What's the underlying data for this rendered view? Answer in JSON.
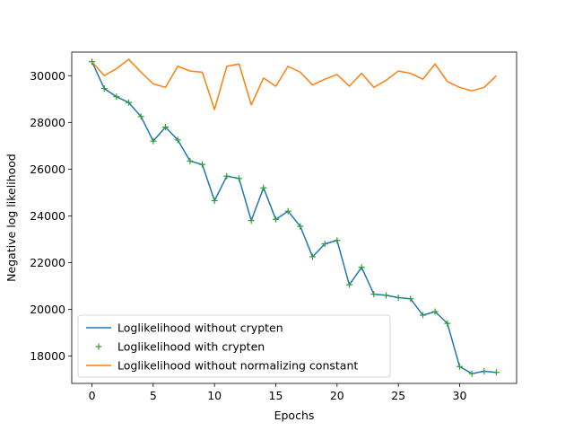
{
  "chart_data": {
    "type": "line",
    "title": "",
    "xlabel": "Epochs",
    "ylabel": "Negative log likelihood",
    "xlim": [
      -1.65,
      34.65
    ],
    "ylim": [
      16830,
      31010
    ],
    "xticks": [
      0,
      5,
      10,
      15,
      20,
      25,
      30
    ],
    "yticks": [
      18000,
      20000,
      22000,
      24000,
      26000,
      28000,
      30000
    ],
    "grid": false,
    "legend_position": "lower-left",
    "x": [
      0,
      1,
      2,
      3,
      4,
      5,
      6,
      7,
      8,
      9,
      10,
      11,
      12,
      13,
      14,
      15,
      16,
      17,
      18,
      19,
      20,
      21,
      22,
      23,
      24,
      25,
      26,
      27,
      28,
      29,
      30,
      31,
      32,
      33
    ],
    "series": [
      {
        "name": "Loglikelihood without crypten",
        "style": "line",
        "color": "#1f77b4",
        "values": [
          30600,
          29450,
          29100,
          28850,
          28250,
          27200,
          27800,
          27250,
          26350,
          26200,
          24650,
          25700,
          25600,
          23800,
          25200,
          23850,
          24200,
          23550,
          22250,
          22800,
          22950,
          21050,
          21800,
          20650,
          20600,
          20500,
          20450,
          19750,
          19900,
          19400,
          17550,
          17250,
          17350,
          17300
        ]
      },
      {
        "name": "Loglikelihood with crypten",
        "style": "marker-plus",
        "color": "#2ca02c",
        "values": [
          30600,
          29450,
          29100,
          28850,
          28250,
          27200,
          27800,
          27250,
          26350,
          26200,
          24650,
          25700,
          25600,
          23800,
          25200,
          23850,
          24200,
          23550,
          22250,
          22800,
          22950,
          21050,
          21800,
          20650,
          20600,
          20500,
          20450,
          19750,
          19900,
          19400,
          17550,
          17250,
          17350,
          17300
        ]
      },
      {
        "name": "Loglikelihood without normalizing constant",
        "style": "line",
        "color": "#ff7f0e",
        "values": [
          30600,
          30000,
          30300,
          30700,
          30150,
          29650,
          29500,
          30400,
          30200,
          30150,
          28550,
          30400,
          30500,
          28750,
          29900,
          29550,
          30400,
          30150,
          29600,
          29850,
          30050,
          29550,
          30100,
          29500,
          29800,
          30200,
          30100,
          29850,
          30500,
          29750,
          29500,
          29350,
          29500,
          30000
        ]
      }
    ]
  }
}
